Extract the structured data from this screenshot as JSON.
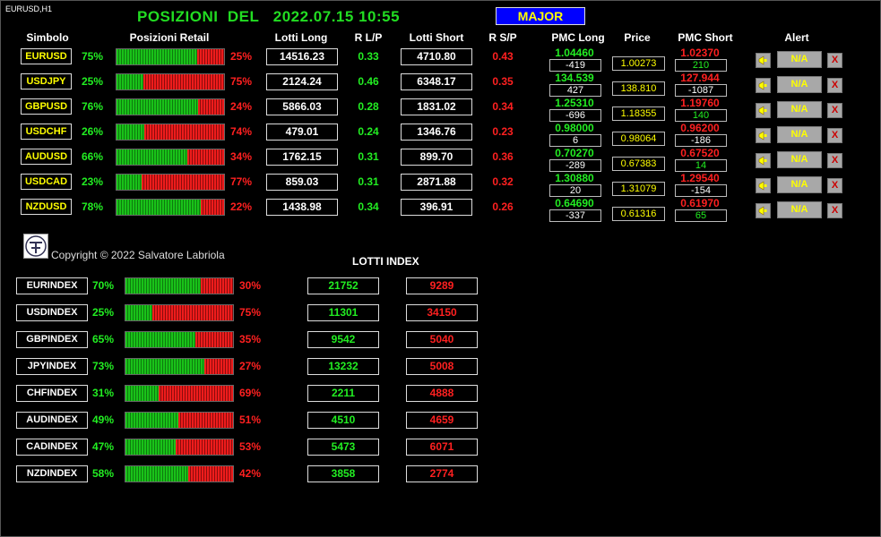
{
  "window_title": "EURUSD,H1",
  "main_title": "POSIZIONI  DEL   2022.07.15 10:55",
  "major_button": "MAJOR",
  "headers": {
    "simbolo": "Simbolo",
    "posizioni": "Posizioni Retail",
    "lotti_long": "Lotti Long",
    "r_lp": "R L/P",
    "lotti_short": "Lotti Short",
    "r_sp": "R S/P",
    "pmc_long": "PMC Long",
    "price": "Price",
    "pmc_short": "PMC Short",
    "alert": "Alert"
  },
  "pairs": [
    {
      "symbol": "EURUSD",
      "long_pct": "75%",
      "short_pct": "25%",
      "long_frac": 0.75,
      "lotti_long": "14516.23",
      "r_lp": "0.33",
      "lotti_short": "4710.80",
      "r_sp": "0.43",
      "pmc_long": "1.04460",
      "pmc_long_diff": "-419",
      "price": "1.00273",
      "pmc_short": "1.02370",
      "pmc_short_diff": "210",
      "alert": "N/A",
      "x": "X"
    },
    {
      "symbol": "USDJPY",
      "long_pct": "25%",
      "short_pct": "75%",
      "long_frac": 0.25,
      "lotti_long": "2124.24",
      "r_lp": "0.46",
      "lotti_short": "6348.17",
      "r_sp": "0.35",
      "pmc_long": "134.539",
      "pmc_long_diff": "427",
      "price": "138.810",
      "pmc_short": "127.944",
      "pmc_short_diff": "-1087",
      "alert": "N/A",
      "x": "X"
    },
    {
      "symbol": "GBPUSD",
      "long_pct": "76%",
      "short_pct": "24%",
      "long_frac": 0.76,
      "lotti_long": "5866.03",
      "r_lp": "0.28",
      "lotti_short": "1831.02",
      "r_sp": "0.34",
      "pmc_long": "1.25310",
      "pmc_long_diff": "-696",
      "price": "1.18355",
      "pmc_short": "1.19760",
      "pmc_short_diff": "140",
      "alert": "N/A",
      "x": "X"
    },
    {
      "symbol": "USDCHF",
      "long_pct": "26%",
      "short_pct": "74%",
      "long_frac": 0.26,
      "lotti_long": "479.01",
      "r_lp": "0.24",
      "lotti_short": "1346.76",
      "r_sp": "0.23",
      "pmc_long": "0.98000",
      "pmc_long_diff": "6",
      "price": "0.98064",
      "pmc_short": "0.96200",
      "pmc_short_diff": "-186",
      "alert": "N/A",
      "x": "X"
    },
    {
      "symbol": "AUDUSD",
      "long_pct": "66%",
      "short_pct": "34%",
      "long_frac": 0.66,
      "lotti_long": "1762.15",
      "r_lp": "0.31",
      "lotti_short": "899.70",
      "r_sp": "0.36",
      "pmc_long": "0.70270",
      "pmc_long_diff": "-289",
      "price": "0.67383",
      "pmc_short": "0.67520",
      "pmc_short_diff": "14",
      "alert": "N/A",
      "x": "X"
    },
    {
      "symbol": "USDCAD",
      "long_pct": "23%",
      "short_pct": "77%",
      "long_frac": 0.23,
      "lotti_long": "859.03",
      "r_lp": "0.31",
      "lotti_short": "2871.88",
      "r_sp": "0.32",
      "pmc_long": "1.30880",
      "pmc_long_diff": "20",
      "price": "1.31079",
      "pmc_short": "1.29540",
      "pmc_short_diff": "-154",
      "alert": "N/A",
      "x": "X"
    },
    {
      "symbol": "NZDUSD",
      "long_pct": "78%",
      "short_pct": "22%",
      "long_frac": 0.78,
      "lotti_long": "1438.98",
      "r_lp": "0.34",
      "lotti_short": "396.91",
      "r_sp": "0.26",
      "pmc_long": "0.64690",
      "pmc_long_diff": "-337",
      "price": "0.61316",
      "pmc_short": "0.61970",
      "pmc_short_diff": "65",
      "alert": "N/A",
      "x": "X"
    }
  ],
  "copyright": "Copyright © 2022 Salvatore Labriola",
  "lotti_index_title": "LOTTI INDEX",
  "indices": [
    {
      "symbol": "EURINDEX",
      "long_pct": "70%",
      "short_pct": "30%",
      "long_frac": 0.7,
      "long_lots": "21752",
      "short_lots": "9289"
    },
    {
      "symbol": "USDINDEX",
      "long_pct": "25%",
      "short_pct": "75%",
      "long_frac": 0.25,
      "long_lots": "11301",
      "short_lots": "34150"
    },
    {
      "symbol": "GBPINDEX",
      "long_pct": "65%",
      "short_pct": "35%",
      "long_frac": 0.65,
      "long_lots": "9542",
      "short_lots": "5040"
    },
    {
      "symbol": "JPYINDEX",
      "long_pct": "73%",
      "short_pct": "27%",
      "long_frac": 0.73,
      "long_lots": "13232",
      "short_lots": "5008"
    },
    {
      "symbol": "CHFINDEX",
      "long_pct": "31%",
      "short_pct": "69%",
      "long_frac": 0.31,
      "long_lots": "2211",
      "short_lots": "4888"
    },
    {
      "symbol": "AUDINDEX",
      "long_pct": "49%",
      "short_pct": "51%",
      "long_frac": 0.49,
      "long_lots": "4510",
      "short_lots": "4659"
    },
    {
      "symbol": "CADINDEX",
      "long_pct": "47%",
      "short_pct": "53%",
      "long_frac": 0.47,
      "long_lots": "5473",
      "short_lots": "6071"
    },
    {
      "symbol": "NZDINDEX",
      "long_pct": "58%",
      "short_pct": "42%",
      "long_frac": 0.58,
      "long_lots": "3858",
      "short_lots": "2774"
    }
  ],
  "colors": {
    "background": "#000000",
    "long": "#22ee22",
    "short": "#ff2020",
    "symbol": "#ffff00",
    "major_bg": "#0000ff"
  },
  "icons": {
    "alert": "bell-alert-icon",
    "logo": "logo-icon"
  }
}
